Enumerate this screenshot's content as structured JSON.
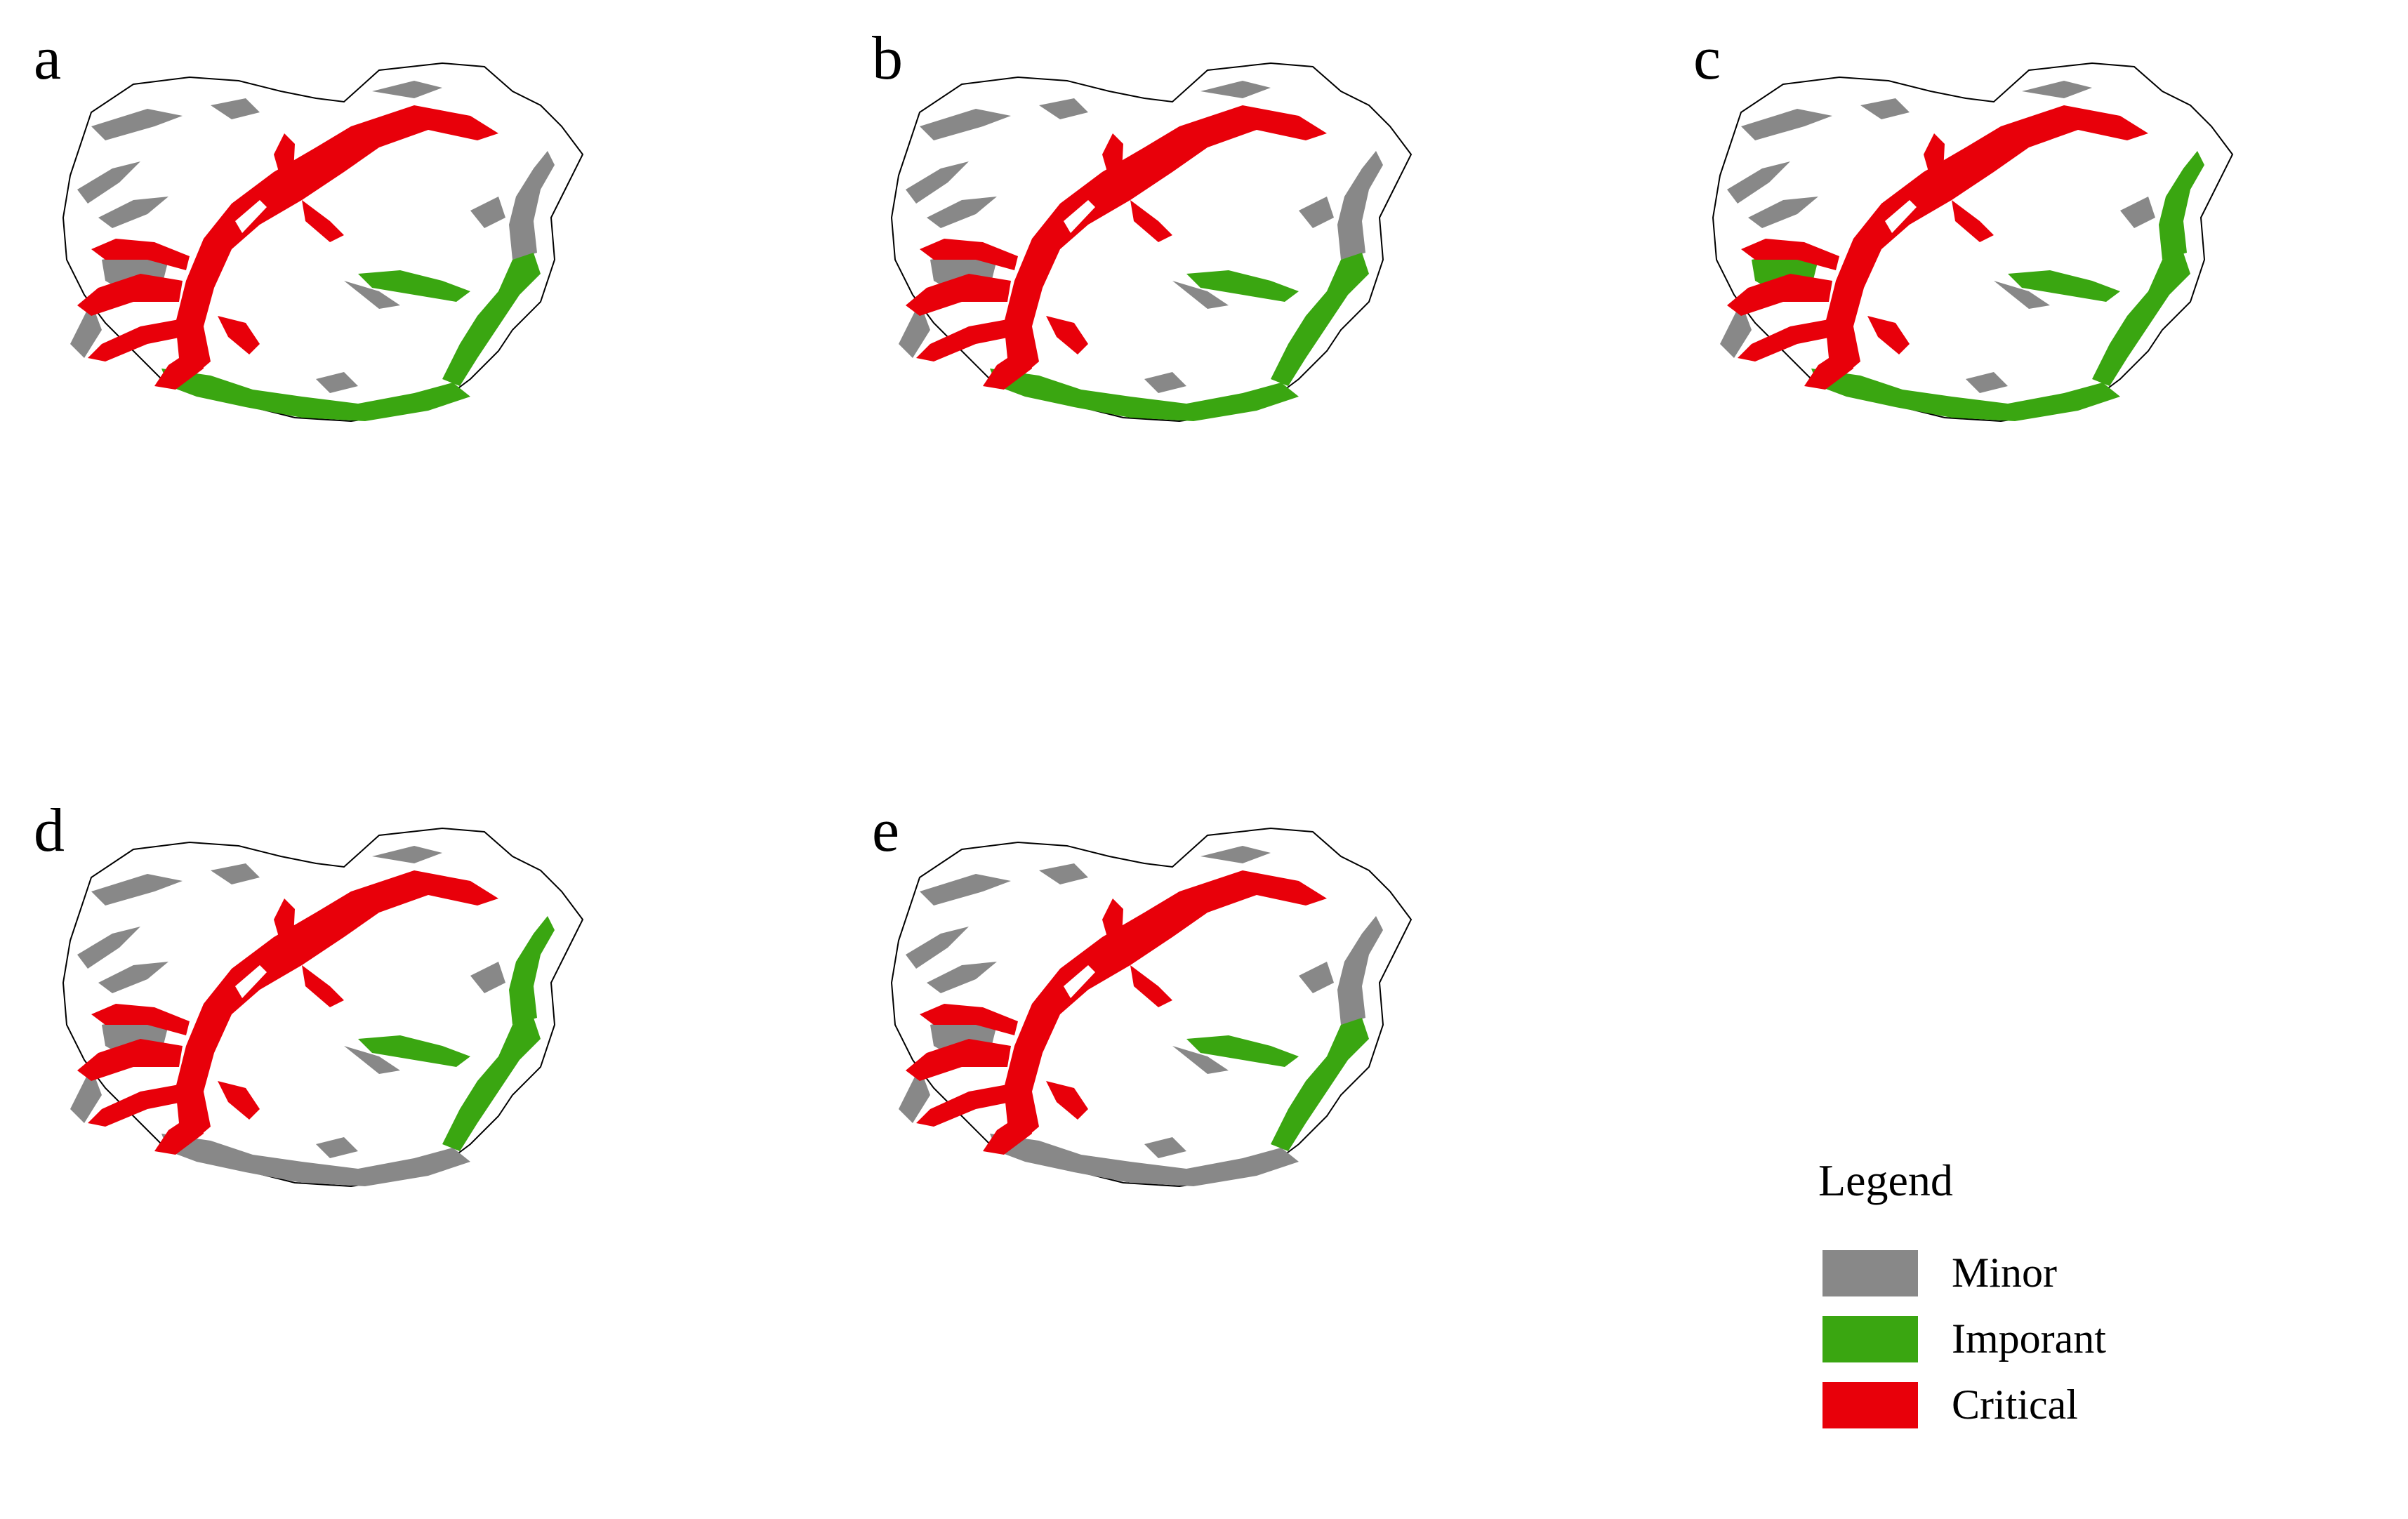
{
  "panels": [
    "a",
    "b",
    "c",
    "d",
    "e"
  ],
  "legend": {
    "title": "Legend",
    "items": [
      {
        "label": "Minor",
        "color": "#888888"
      },
      {
        "label": "Imporant",
        "color": "#3aa611"
      },
      {
        "label": "Critical",
        "color": "#e8000a"
      }
    ]
  },
  "colors": {
    "minor": "#888888",
    "important": "#3aa611",
    "critical": "#e8000a",
    "outline": "#000000"
  },
  "panel_categories": {
    "a": {
      "south_belt": "important",
      "east_branch": "important",
      "northwest_patch": "minor",
      "east_upper_branch": "minor"
    },
    "b": {
      "south_belt": "important",
      "east_branch": "important",
      "northwest_patch": "minor",
      "east_upper_branch": "minor"
    },
    "c": {
      "south_belt": "important",
      "east_branch": "important",
      "northwest_patch": "important",
      "east_upper_branch": "important"
    },
    "d": {
      "south_belt": "minor",
      "east_branch": "important",
      "northwest_patch": "minor",
      "east_upper_branch": "important"
    },
    "e": {
      "south_belt": "minor",
      "east_branch": "important",
      "northwest_patch": "minor",
      "east_upper_branch": "minor"
    }
  }
}
